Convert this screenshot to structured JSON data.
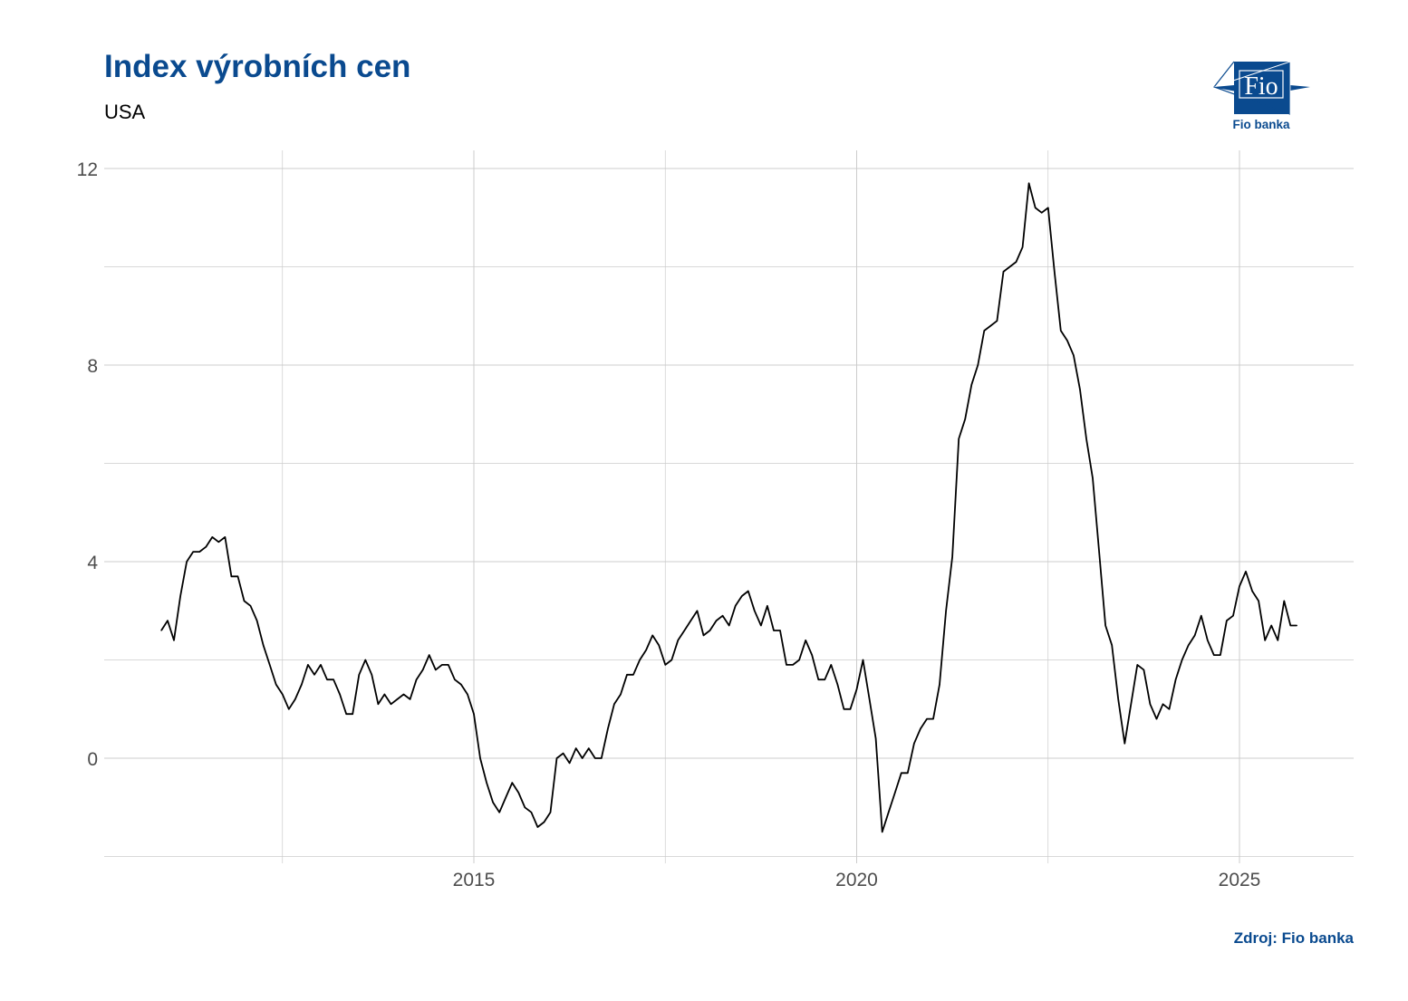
{
  "header": {
    "title": "Index výrobních cen",
    "subtitle": "USA"
  },
  "footer": {
    "source": "Zdroj: Fio banka"
  },
  "logo": {
    "text": "Fio",
    "caption": "Fio banka",
    "color": "#0a4a8f"
  },
  "colors": {
    "title": "#0a4a8f",
    "line": "#000000",
    "grid": "#cccccc"
  },
  "chart_data": {
    "type": "line",
    "title": "Index výrobních cen",
    "subtitle": "USA",
    "xlabel": "",
    "ylabel": "",
    "ylim": [
      -2,
      12
    ],
    "xlim": [
      "2010-06",
      "2026-06"
    ],
    "grid": true,
    "y_ticks": [
      "0",
      "4",
      "8",
      "12"
    ],
    "x_ticks": [
      "2015",
      "2020",
      "2025"
    ],
    "x": [
      "2010-12",
      "2011-01",
      "2011-02",
      "2011-03",
      "2011-04",
      "2011-05",
      "2011-06",
      "2011-07",
      "2011-08",
      "2011-09",
      "2011-10",
      "2011-11",
      "2011-12",
      "2012-01",
      "2012-02",
      "2012-03",
      "2012-04",
      "2012-05",
      "2012-06",
      "2012-07",
      "2012-08",
      "2012-09",
      "2012-10",
      "2012-11",
      "2012-12",
      "2013-01",
      "2013-02",
      "2013-03",
      "2013-04",
      "2013-05",
      "2013-06",
      "2013-07",
      "2013-08",
      "2013-09",
      "2013-10",
      "2013-11",
      "2013-12",
      "2014-01",
      "2014-02",
      "2014-03",
      "2014-04",
      "2014-05",
      "2014-06",
      "2014-07",
      "2014-08",
      "2014-09",
      "2014-10",
      "2014-11",
      "2014-12",
      "2015-01",
      "2015-02",
      "2015-03",
      "2015-04",
      "2015-05",
      "2015-06",
      "2015-07",
      "2015-08",
      "2015-09",
      "2015-10",
      "2015-11",
      "2015-12",
      "2016-01",
      "2016-02",
      "2016-03",
      "2016-04",
      "2016-05",
      "2016-06",
      "2016-07",
      "2016-08",
      "2016-09",
      "2016-10",
      "2016-11",
      "2016-12",
      "2017-01",
      "2017-02",
      "2017-03",
      "2017-04",
      "2017-05",
      "2017-06",
      "2017-07",
      "2017-08",
      "2017-09",
      "2017-10",
      "2017-11",
      "2017-12",
      "2018-01",
      "2018-02",
      "2018-03",
      "2018-04",
      "2018-05",
      "2018-06",
      "2018-07",
      "2018-08",
      "2018-09",
      "2018-10",
      "2018-11",
      "2018-12",
      "2019-01",
      "2019-02",
      "2019-03",
      "2019-04",
      "2019-05",
      "2019-06",
      "2019-07",
      "2019-08",
      "2019-09",
      "2019-10",
      "2019-11",
      "2019-12",
      "2020-01",
      "2020-02",
      "2020-03",
      "2020-04",
      "2020-05",
      "2020-06",
      "2020-07",
      "2020-08",
      "2020-09",
      "2020-10",
      "2020-11",
      "2020-12",
      "2021-01",
      "2021-02",
      "2021-03",
      "2021-04",
      "2021-05",
      "2021-06",
      "2021-07",
      "2021-08",
      "2021-09",
      "2021-10",
      "2021-11",
      "2021-12",
      "2022-01",
      "2022-02",
      "2022-03",
      "2022-04",
      "2022-05",
      "2022-06",
      "2022-07",
      "2022-08",
      "2022-09",
      "2022-10",
      "2022-11",
      "2022-12",
      "2023-01",
      "2023-02",
      "2023-03",
      "2023-04",
      "2023-05",
      "2023-06",
      "2023-07",
      "2023-08",
      "2023-09",
      "2023-10",
      "2023-11",
      "2023-12",
      "2024-01",
      "2024-02",
      "2024-03",
      "2024-04",
      "2024-05",
      "2024-06",
      "2024-07",
      "2024-08",
      "2024-09",
      "2024-10",
      "2024-11",
      "2024-12",
      "2025-01",
      "2025-02",
      "2025-03",
      "2025-04",
      "2025-05",
      "2025-06",
      "2025-07",
      "2025-08",
      "2025-09",
      "2025-10"
    ],
    "series": [
      {
        "values": [
          2.6,
          2.8,
          2.4,
          3.3,
          4.0,
          4.2,
          4.2,
          4.3,
          4.5,
          4.4,
          4.5,
          3.7,
          3.7,
          3.2,
          3.1,
          2.8,
          2.3,
          1.9,
          1.5,
          1.3,
          1.0,
          1.2,
          1.5,
          1.9,
          1.7,
          1.9,
          1.6,
          1.6,
          1.3,
          0.9,
          0.9,
          1.7,
          2.0,
          1.7,
          1.1,
          1.3,
          1.1,
          1.2,
          1.3,
          1.2,
          1.6,
          1.8,
          2.1,
          1.8,
          1.9,
          1.9,
          1.6,
          1.5,
          1.3,
          0.9,
          0.0,
          -0.5,
          -0.9,
          -1.1,
          -0.8,
          -0.5,
          -0.7,
          -1.0,
          -1.1,
          -1.4,
          -1.3,
          -1.1,
          0.0,
          0.1,
          -0.1,
          0.2,
          0.0,
          0.2,
          0.0,
          0.0,
          0.6,
          1.1,
          1.3,
          1.7,
          1.7,
          2.0,
          2.2,
          2.5,
          2.3,
          1.9,
          2.0,
          2.4,
          2.6,
          2.8,
          3.0,
          2.5,
          2.6,
          2.8,
          2.9,
          2.7,
          3.1,
          3.3,
          3.4,
          3.0,
          2.7,
          3.1,
          2.6,
          2.6,
          1.9,
          1.9,
          2.0,
          2.4,
          2.1,
          1.6,
          1.6,
          1.9,
          1.5,
          1.0,
          1.0,
          1.4,
          2.0,
          1.2,
          0.4,
          -1.5,
          -1.1,
          -0.7,
          -0.3,
          -0.3,
          0.3,
          0.6,
          0.8,
          0.8,
          1.5,
          3.0,
          4.1,
          6.5,
          6.9,
          7.6,
          8.0,
          8.7,
          8.8,
          8.9,
          9.9,
          10.0,
          10.1,
          10.4,
          11.7,
          11.2,
          11.1,
          11.2,
          9.9,
          8.7,
          8.5,
          8.2,
          7.5,
          6.5,
          5.7,
          4.2,
          2.7,
          2.3,
          1.2,
          0.3,
          1.1,
          1.9,
          1.8,
          1.1,
          0.8,
          1.1,
          1.0,
          1.6,
          2.0,
          2.3,
          2.5,
          2.9,
          2.4,
          2.1,
          2.1,
          2.8,
          2.9,
          3.5,
          3.8,
          3.4,
          3.2,
          2.4,
          2.7,
          2.4,
          3.2,
          2.7,
          2.7
        ]
      }
    ]
  }
}
